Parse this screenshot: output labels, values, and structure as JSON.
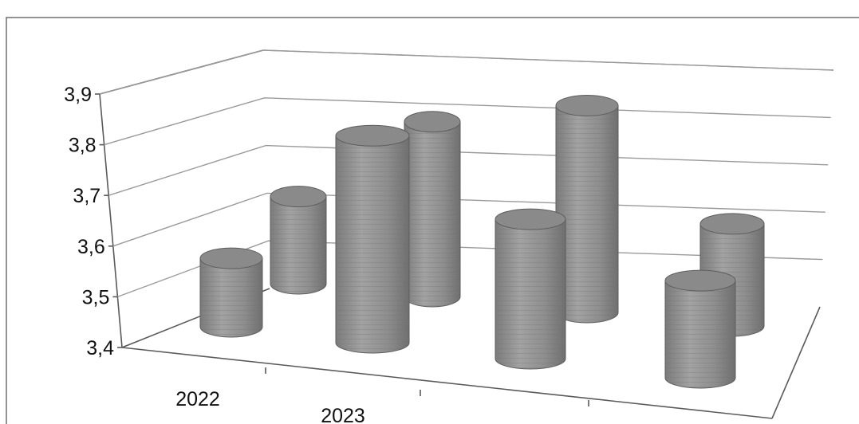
{
  "chart_data": {
    "type": "bar",
    "style": "3d-cylinder",
    "categories": [
      "2022",
      "2023",
      "",
      ""
    ],
    "series": [
      {
        "values": [
          3.58,
          3.89,
          3.73,
          3.63
        ]
      },
      {
        "values": [
          3.64,
          3.84,
          3.91,
          3.71
        ]
      }
    ],
    "ylim": [
      3.4,
      3.9
    ],
    "yticks": [
      "3,4",
      "3,5",
      "3,6",
      "3,7",
      "3,8",
      "3,9"
    ],
    "grid": true,
    "legend": "none",
    "bar_color": "#8f8f8f"
  }
}
